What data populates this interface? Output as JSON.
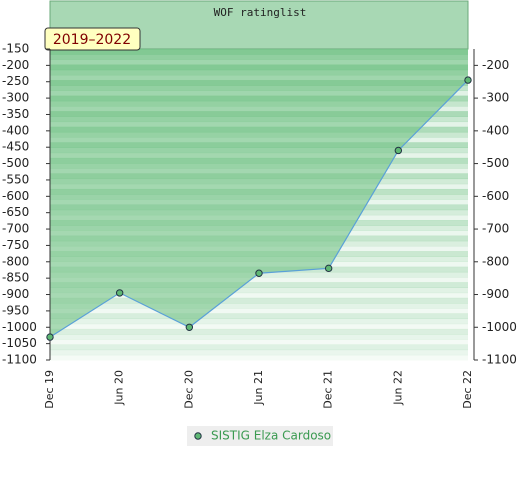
{
  "chart_data": {
    "type": "line",
    "title": "WOF ratinglist",
    "badge": "2019–2022",
    "categories": [
      "Dec 19",
      "Jun 20",
      "Dec 20",
      "Jun 21",
      "Dec 21",
      "Jun 22",
      "Dec 22"
    ],
    "series": [
      {
        "name": "SISTIG Elza Cardoso",
        "color": "#5aa0d8",
        "values": [
          -1030,
          -895,
          -1000,
          -835,
          -820,
          -460,
          -245
        ]
      }
    ],
    "ylim": [
      -1100,
      -150
    ],
    "yticks": [
      -150,
      -200,
      -250,
      -300,
      -350,
      -400,
      -450,
      -500,
      -550,
      -600,
      -650,
      -700,
      -750,
      -800,
      -850,
      -900,
      -950,
      -1000,
      -1050,
      -1100
    ],
    "y2lim": [
      -1100,
      -150
    ],
    "y2ticks": [
      -200,
      -300,
      -400,
      -500,
      -600,
      -700,
      -800,
      -900,
      -1000,
      -1100
    ],
    "legend": "bottom"
  }
}
